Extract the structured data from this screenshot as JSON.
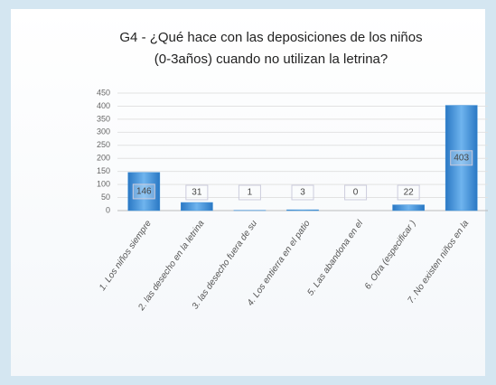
{
  "chart_data": {
    "type": "bar",
    "title": [
      "G4 - ¿Qué hace con las deposiciones de  los niños",
      "(0-3años) cuando no utilizan  la letrina?"
    ],
    "categories": [
      "1. Los niños siempre",
      "2. las desecho en la letrina",
      "3. las desecho fuera de su",
      "4. Los entierra en el patio",
      "5. Las abandona en el",
      "6. Otra (especificar )",
      "7. No existen niños en la"
    ],
    "values": [
      146,
      31,
      1,
      3,
      0,
      22,
      403
    ],
    "color": "#3d8fd6",
    "ylim": [
      0,
      450
    ],
    "yticks": [
      0,
      50,
      100,
      150,
      200,
      250,
      300,
      350,
      400,
      450
    ],
    "grid": true
  }
}
